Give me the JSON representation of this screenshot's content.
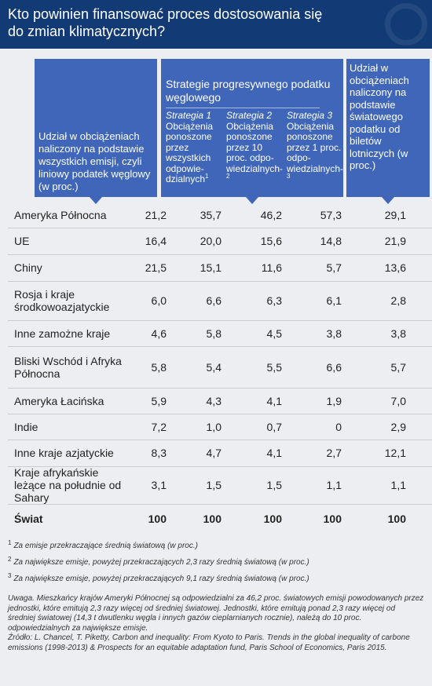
{
  "header": {
    "title": "Kto powinien finansować proces dostosowania się do zmian klimatycznych?"
  },
  "columns": {
    "col1": "Udział w obciążeniach naliczony na podstawie wszystkich emisji, czyli liniowy podatek węglowy (w proc.)",
    "group": "Strategie progresywnego podatku węglowego",
    "s1_name": "Strategia 1",
    "s1_text": "Obciążenia ponoszone przez wszystkich odpowie-dzialnych",
    "s1_sup": "1",
    "s2_name": "Strategia 2",
    "s2_text": "Obciążenia ponoszone przez 10 proc. odpo-wiedzialnych-",
    "s2_sup": "2",
    "s3_name": "Strategia 3",
    "s3_text": "Obciążenia ponoszone przez 1 proc. odpo-wiedzialnych-",
    "s3_sup": "3",
    "col5": "Udział w obciążeniach naliczony na podstawie światowego podatku od biletów lotniczych (w proc.)"
  },
  "rows": [
    {
      "country": "Ameryka Północna",
      "v": [
        "21,2",
        "35,7",
        "46,2",
        "57,3",
        "29,1"
      ]
    },
    {
      "country": "UE",
      "v": [
        "16,4",
        "20,0",
        "15,6",
        "14,8",
        "21,9"
      ]
    },
    {
      "country": "Chiny",
      "v": [
        "21,5",
        "15,1",
        "11,6",
        "5,7",
        "13,6"
      ]
    },
    {
      "country": "Rosja i kraje środkowoazjatyckie",
      "v": [
        "6,0",
        "6,6",
        "6,3",
        "6,1",
        "2,8"
      ]
    },
    {
      "country": "Inne zamożne kraje",
      "v": [
        "4,6",
        "5,8",
        "4,5",
        "3,8",
        "3,8"
      ]
    },
    {
      "country": "Bliski Wschód i Afryka Północna",
      "v": [
        "5,8",
        "5,4",
        "5,5",
        "6,6",
        "5,7"
      ]
    },
    {
      "country": "Ameryka Łacińska",
      "v": [
        "5,9",
        "4,3",
        "4,1",
        "1,9",
        "7,0"
      ]
    },
    {
      "country": "Indie",
      "v": [
        "7,2",
        "1,0",
        "0,7",
        "0",
        "2,9"
      ]
    },
    {
      "country": "Inne kraje azjatyckie",
      "v": [
        "8,3",
        "4,7",
        "4,1",
        "2,7",
        "12,1"
      ]
    },
    {
      "country": "Kraje afrykańskie leżące na południe od Sahary",
      "v": [
        "3,1",
        "1,5",
        "1,5",
        "1,1",
        "1,1"
      ]
    },
    {
      "country": "Świat",
      "v": [
        "100",
        "100",
        "100",
        "100",
        "100"
      ]
    }
  ],
  "footnotes": [
    {
      "num": "1",
      "text": "Za emisje przekraczające średnią światową (w proc.)"
    },
    {
      "num": "2",
      "text": "Za największe emisje, powyżej przekraczających 2,3 razy średnią światową (w proc.)"
    },
    {
      "num": "3",
      "text": "Za największe emisje, powyżej przekraczających 9,1 razy średnią światową (w proc.)"
    }
  ],
  "remark": "Uwaga. Mieszkańcy krajów Ameryki Północnej są odpowiedzialni za 46,2 proc. światowych emisji powodowanych przez jednostki, które emitują 2,3 razy więcej od średniej światowej. Jednostki, które emitują ponad 2,3 razy więcej od średniej światowej (14,3 t dwutlenku węgla i innych gazów cieplarnianych rocznie), należą do 10 proc. odpowiedzialnych za największe emisje.",
  "source": "Źródło: L. Chancel, T. Piketty, Carbon and inequality: From Kyoto to Paris. Trends in the global inequality of carbone emissions (1998-2013) & Prospects for an equitable adaptation fund, Paris School of Economics, Paris 2015."
}
